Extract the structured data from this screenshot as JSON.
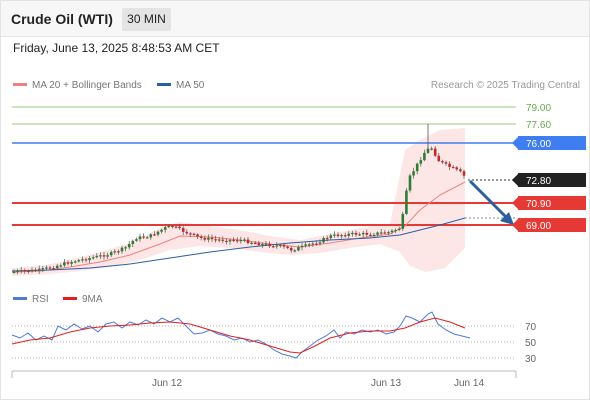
{
  "header": {
    "title": "Crude Oil (WTI)",
    "timeframe": "30 MIN"
  },
  "date_line": "Friday, June 13, 2025 8:48:53 AM CET",
  "legend": {
    "ma20": "MA 20 + Bollinger Bands",
    "ma50": "MA 50",
    "research": "Research © 2025 Trading Central"
  },
  "rsi_legend": {
    "rsi": "RSI",
    "ma": "9MA"
  },
  "colors": {
    "ma20": "#f08080",
    "ma50": "#2b5ea8",
    "resistance": "#e53935",
    "pivot": "#3f7ef0",
    "target_arrow": "#2c5f9e",
    "bullish": "#2e7d32",
    "bearish": "#c62828",
    "bollinger_fill": "#fde2e2",
    "level_line": "#9bc97b",
    "rsi": "#4f7bd6",
    "rsi_ma": "#e02020"
  },
  "price_levels": {
    "r2": {
      "label": "79.00"
    },
    "r1": {
      "label": "77.60"
    },
    "pivot": {
      "label": "76.00"
    },
    "last": {
      "label": "72.80"
    },
    "s1": {
      "label": "70.90"
    },
    "s2": {
      "label": "69.00"
    }
  },
  "x_axis": {
    "ticks": [
      "Jun 12",
      "Jun 13",
      "Jun 14"
    ]
  },
  "rsi_axis": {
    "ticks": [
      "70",
      "50",
      "30"
    ]
  },
  "chart_data": {
    "type": "candlestick",
    "title": "Crude Oil (WTI)",
    "timeframe": "30 MIN",
    "pivot": 76.0,
    "resistances": [
      77.6,
      79.0
    ],
    "supports": [
      70.9,
      69.0
    ],
    "last_price": 72.8,
    "price_range_approx": [
      63.9,
      79.4
    ],
    "indicators": [
      "MA 20 + Bollinger Bands",
      "MA 50",
      "RSI",
      "9MA"
    ],
    "rsi_levels": [
      70,
      50,
      30
    ],
    "x_ticks": [
      "Jun 12",
      "Jun 13",
      "Jun 14"
    ],
    "bias": "down"
  }
}
